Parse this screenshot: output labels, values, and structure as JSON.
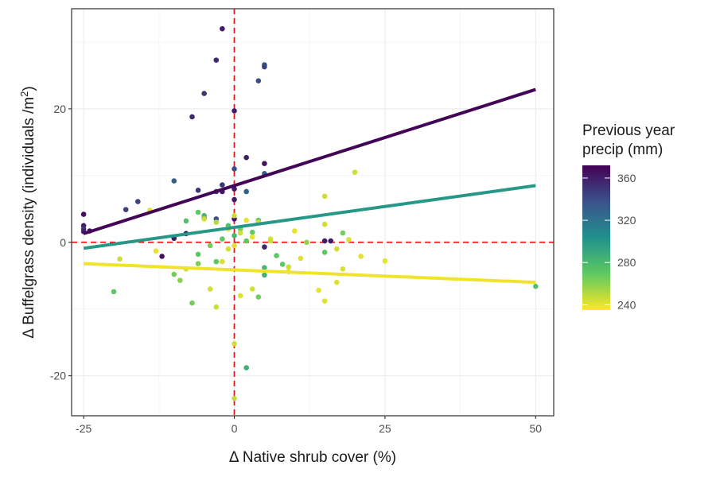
{
  "chart_data": {
    "type": "scatter",
    "xlabel": "Δ Native shrub cover (%)",
    "ylabel_main": "Δ Buffelgrass density (individuals /m",
    "ylabel_sup": "2",
    "ylabel_close": ")",
    "xlim": [
      -27,
      53
    ],
    "ylim": [
      -26,
      35
    ],
    "x_ticks": [
      -25,
      0,
      25,
      50
    ],
    "x_tick_labels": [
      "-25",
      "0",
      "25",
      "50"
    ],
    "y_ticks": [
      -20,
      0,
      20
    ],
    "y_tick_labels": [
      "-20",
      "0",
      "20"
    ],
    "grid": true,
    "reference_lines": {
      "x": 0,
      "y": 0,
      "color": "#e31a1c"
    },
    "legend": {
      "title_line1": "Previous year",
      "title_line2": "precip (mm)",
      "position": "right",
      "range": [
        235,
        372
      ],
      "ticks": [
        240,
        280,
        320,
        360
      ],
      "tick_labels": [
        "240",
        "280",
        "320",
        "360"
      ]
    },
    "fit_lines": [
      {
        "precip": 370,
        "x": [
          -25,
          50
        ],
        "y": [
          1.3,
          22.9
        ]
      },
      {
        "precip": 300,
        "x": [
          -25,
          50
        ],
        "y": [
          -0.9,
          8.5
        ]
      },
      {
        "precip": 238,
        "x": [
          -25,
          50
        ],
        "y": [
          -3.2,
          -6.0
        ]
      }
    ],
    "points": [
      [
        -2,
        32,
        360
      ],
      [
        -3,
        27.3,
        355
      ],
      [
        5,
        26.6,
        340
      ],
      [
        5,
        26.3,
        345
      ],
      [
        4,
        24.2,
        340
      ],
      [
        -5,
        22.3,
        350
      ],
      [
        0,
        19.7,
        360
      ],
      [
        -7,
        18.8,
        355
      ],
      [
        2,
        12.7,
        360
      ],
      [
        5,
        11.8,
        365
      ],
      [
        0,
        11.0,
        340
      ],
      [
        5,
        10.3,
        330
      ],
      [
        -10,
        9.2,
        330
      ],
      [
        -2,
        8.6,
        350
      ],
      [
        0,
        8.0,
        360
      ],
      [
        2,
        7.6,
        330
      ],
      [
        -2,
        7.6,
        360
      ],
      [
        -3,
        7.6,
        345
      ],
      [
        -6,
        7.8,
        350
      ],
      [
        -16,
        6.1,
        345
      ],
      [
        0,
        6.4,
        360
      ],
      [
        -18,
        4.9,
        345
      ],
      [
        -5,
        3.6,
        355
      ],
      [
        -3,
        3.5,
        340
      ],
      [
        0,
        3.5,
        360
      ],
      [
        -25,
        4.2,
        365
      ],
      [
        -25,
        2.5,
        360
      ],
      [
        -25,
        2.0,
        350
      ],
      [
        -25,
        1.6,
        360
      ],
      [
        -24,
        1.7,
        365
      ],
      [
        -8,
        1.3,
        370
      ],
      [
        -10,
        0.6,
        360
      ],
      [
        -12,
        -2.1,
        365
      ],
      [
        5,
        -0.7,
        355
      ],
      [
        15,
        0.2,
        360
      ],
      [
        16,
        0.2,
        360
      ],
      [
        -5,
        4.0,
        280
      ],
      [
        -6,
        4.5,
        270
      ],
      [
        -8,
        3.2,
        275
      ],
      [
        -1,
        2.5,
        275
      ],
      [
        1,
        2.0,
        265
      ],
      [
        3,
        1.5,
        270
      ],
      [
        4,
        3.3,
        270
      ],
      [
        -2,
        0.5,
        270
      ],
      [
        0,
        1.0,
        280
      ],
      [
        2,
        0.2,
        270
      ],
      [
        -4,
        -0.5,
        265
      ],
      [
        -6,
        -1.8,
        270
      ],
      [
        5,
        -3.8,
        280
      ],
      [
        5,
        -4.9,
        285
      ],
      [
        7,
        -2.0,
        270
      ],
      [
        8,
        -3.3,
        270
      ],
      [
        -3,
        -2.9,
        270
      ],
      [
        -7,
        -9.1,
        265
      ],
      [
        2,
        -18.8,
        285
      ],
      [
        -20,
        -7.4,
        270
      ],
      [
        50,
        -6.6,
        275
      ],
      [
        18,
        1.4,
        265
      ],
      [
        15,
        -1.5,
        270
      ],
      [
        -10,
        -4.8,
        265
      ],
      [
        -9,
        -5.7,
        260
      ],
      [
        4,
        -8.2,
        265
      ],
      [
        -6,
        -3.2,
        262
      ],
      [
        12,
        0.0,
        258
      ],
      [
        -14,
        4.8,
        240
      ],
      [
        -5,
        3.5,
        245
      ],
      [
        -3,
        3.0,
        250
      ],
      [
        0,
        4.0,
        245
      ],
      [
        2,
        3.3,
        240
      ],
      [
        4,
        3.0,
        245
      ],
      [
        -1,
        2.0,
        240
      ],
      [
        1,
        1.4,
        245
      ],
      [
        3,
        0.8,
        240
      ],
      [
        6,
        0.5,
        242
      ],
      [
        10,
        1.7,
        240
      ],
      [
        15,
        2.7,
        245
      ],
      [
        15,
        6.9,
        245
      ],
      [
        20,
        10.5,
        245
      ],
      [
        19,
        0.4,
        242
      ],
      [
        21,
        -2.1,
        240
      ],
      [
        25,
        -2.8,
        240
      ],
      [
        17,
        -6.0,
        242
      ],
      [
        14,
        -7.2,
        240
      ],
      [
        15,
        -8.8,
        242
      ],
      [
        9,
        -3.7,
        245
      ],
      [
        11,
        -2.4,
        242
      ],
      [
        -2,
        -2.9,
        243
      ],
      [
        -4,
        -7.0,
        244
      ],
      [
        -3,
        -9.7,
        246
      ],
      [
        0,
        -15.2,
        245
      ],
      [
        0,
        -23.4,
        248
      ],
      [
        1,
        -8.0,
        242
      ],
      [
        -1,
        -1.0,
        244
      ],
      [
        -19,
        -2.5,
        246
      ],
      [
        -13,
        -1.3,
        240
      ],
      [
        17,
        -1.0,
        245
      ],
      [
        18,
        -4.0,
        243
      ],
      [
        9,
        -4.4,
        241
      ],
      [
        3,
        -7.0,
        244
      ],
      [
        -8,
        -4.0,
        246
      ],
      [
        6,
        0.2,
        246
      ],
      [
        0,
        -0.5,
        242
      ]
    ]
  }
}
